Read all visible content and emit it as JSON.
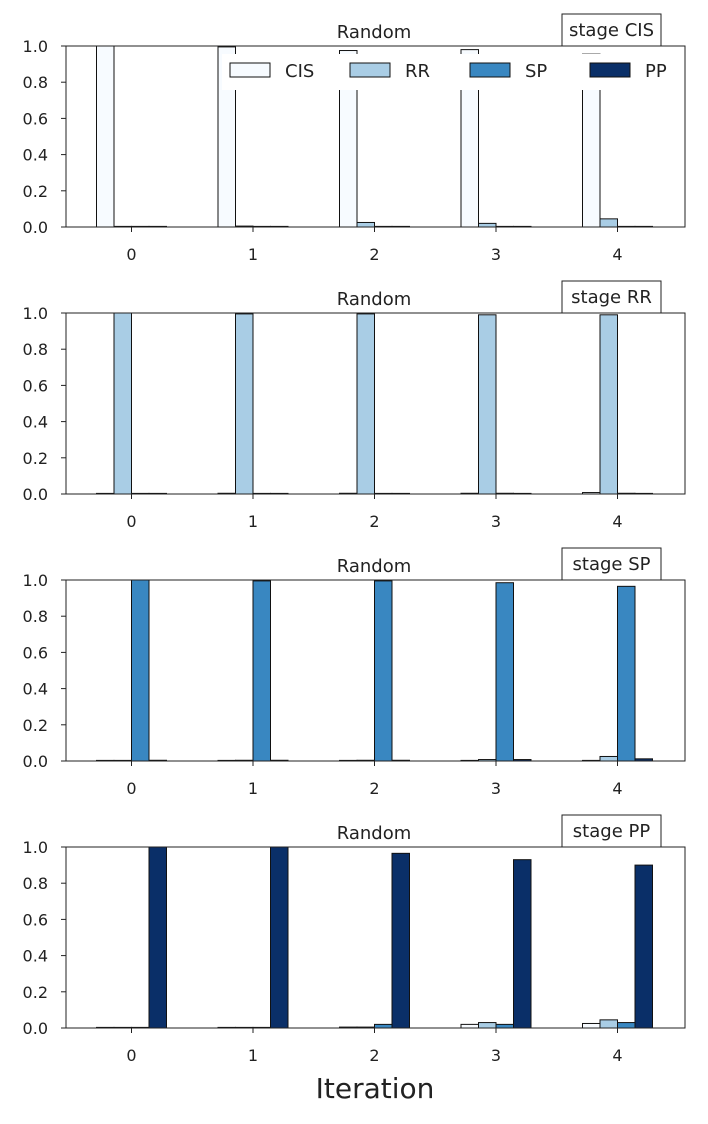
{
  "figure": {
    "xlabel": "Iteration"
  },
  "legend": {
    "placement": "top-right",
    "entries": [
      {
        "name": "CIS",
        "color": "#f7fbff"
      },
      {
        "name": "RR",
        "color": "#a9cde5"
      },
      {
        "name": "SP",
        "color": "#3987c1"
      },
      {
        "name": "PP",
        "color": "#0a2f68"
      }
    ]
  },
  "chart_data": [
    {
      "type": "bar",
      "title": "Random",
      "annotation": "stage CIS",
      "categories": [
        "0",
        "1",
        "2",
        "3",
        "4"
      ],
      "ylim": [
        0,
        1
      ],
      "yticks": [
        "0.0",
        "0.2",
        "0.4",
        "0.6",
        "0.8",
        "1.0"
      ],
      "series": [
        {
          "name": "CIS",
          "values": [
            1.0,
            0.995,
            0.975,
            0.98,
            0.955
          ]
        },
        {
          "name": "RR",
          "values": [
            0.0,
            0.005,
            0.025,
            0.02,
            0.045
          ]
        },
        {
          "name": "SP",
          "values": [
            0.0,
            0.0,
            0.0,
            0.0,
            0.0
          ]
        },
        {
          "name": "PP",
          "values": [
            0.0,
            0.0,
            0.0,
            0.0,
            0.0
          ]
        }
      ]
    },
    {
      "type": "bar",
      "title": "Random",
      "annotation": "stage RR",
      "categories": [
        "0",
        "1",
        "2",
        "3",
        "4"
      ],
      "ylim": [
        0,
        1
      ],
      "yticks": [
        "0.0",
        "0.2",
        "0.4",
        "0.6",
        "0.8",
        "1.0"
      ],
      "series": [
        {
          "name": "CIS",
          "values": [
            0.0,
            0.004,
            0.004,
            0.004,
            0.008
          ]
        },
        {
          "name": "RR",
          "values": [
            1.0,
            0.995,
            0.995,
            0.99,
            0.99
          ]
        },
        {
          "name": "SP",
          "values": [
            0.0,
            0.0,
            0.0,
            0.004,
            0.004
          ]
        },
        {
          "name": "PP",
          "values": [
            0.0,
            0.0,
            0.0,
            0.0,
            0.0
          ]
        }
      ]
    },
    {
      "type": "bar",
      "title": "Random",
      "annotation": "stage SP",
      "categories": [
        "0",
        "1",
        "2",
        "3",
        "4"
      ],
      "ylim": [
        0,
        1
      ],
      "yticks": [
        "0.0",
        "0.2",
        "0.4",
        "0.6",
        "0.8",
        "1.0"
      ],
      "series": [
        {
          "name": "CIS",
          "values": [
            0.0,
            0.0,
            0.0,
            0.0,
            0.0
          ]
        },
        {
          "name": "RR",
          "values": [
            0.0,
            0.004,
            0.004,
            0.008,
            0.025
          ]
        },
        {
          "name": "SP",
          "values": [
            1.0,
            0.995,
            0.995,
            0.985,
            0.965
          ]
        },
        {
          "name": "PP",
          "values": [
            0.004,
            0.004,
            0.004,
            0.008,
            0.012
          ]
        }
      ]
    },
    {
      "type": "bar",
      "title": "Random",
      "annotation": "stage PP",
      "categories": [
        "0",
        "1",
        "2",
        "3",
        "4"
      ],
      "ylim": [
        0,
        1
      ],
      "yticks": [
        "0.0",
        "0.2",
        "0.4",
        "0.6",
        "0.8",
        "1.0"
      ],
      "series": [
        {
          "name": "CIS",
          "values": [
            0.0,
            0.0,
            0.005,
            0.02,
            0.025
          ]
        },
        {
          "name": "RR",
          "values": [
            0.0,
            0.0,
            0.005,
            0.03,
            0.045
          ]
        },
        {
          "name": "SP",
          "values": [
            0.0,
            0.0,
            0.02,
            0.02,
            0.03
          ]
        },
        {
          "name": "PP",
          "values": [
            1.0,
            1.0,
            0.965,
            0.93,
            0.9
          ]
        }
      ]
    }
  ]
}
